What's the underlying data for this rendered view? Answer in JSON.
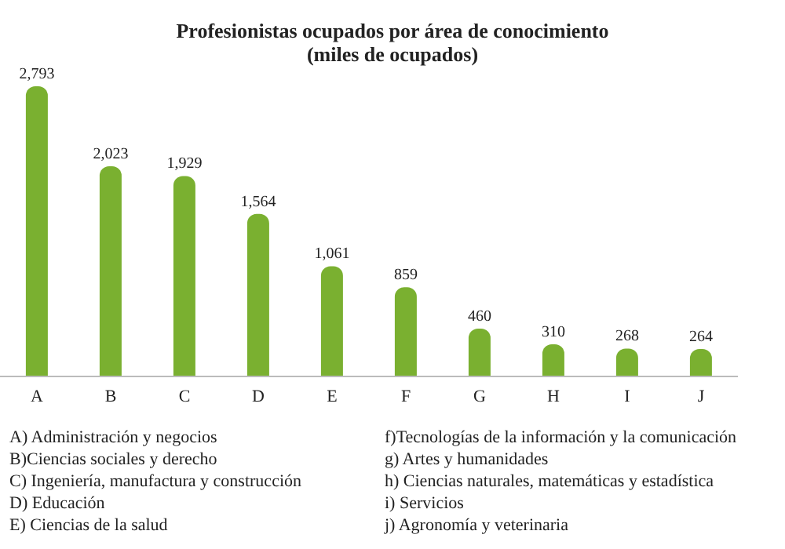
{
  "chart_data": {
    "type": "bar",
    "title": "Profesionistas ocupados por área de conocimiento\n(miles de ocupados)",
    "categories": [
      "A",
      "B",
      "C",
      "D",
      "E",
      "F",
      "G",
      "H",
      "I",
      "J"
    ],
    "values": [
      2793,
      2023,
      1929,
      1564,
      1061,
      859,
      460,
      310,
      268,
      264
    ],
    "value_labels": [
      "2,793",
      "2,023",
      "1,929",
      "1,564",
      "1,061",
      "859",
      "460",
      "310",
      "268",
      "264"
    ],
    "color": "#7ab030",
    "tick_labels": "x",
    "grid": false,
    "legend": false,
    "annotations": [
      "A) Administración y negocios",
      "B)Ciencias sociales y derecho",
      "C) Ingeniería, manufactura y construcción",
      "D) Educación",
      "E) Ciencias de la salud",
      "f)Tecnologías de la información y la comunicación",
      "g) Artes y humanidades",
      "h) Ciencias naturales, matemáticas y estadística",
      "i)  Servicios",
      "j) Agronomía y veterinaria"
    ]
  }
}
